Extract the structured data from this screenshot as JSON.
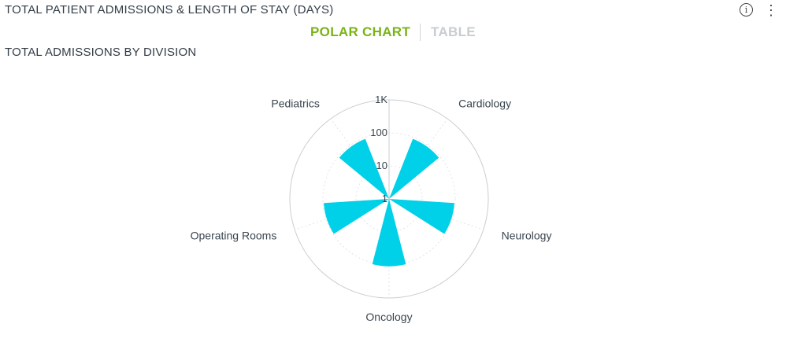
{
  "header": {
    "title": "TOTAL PATIENT ADMISSIONS & LENGTH OF STAY (DAYS)",
    "info_icon": "info-icon",
    "menu_icon": "kebab-menu-icon"
  },
  "view_toggle": {
    "active": "POLAR CHART",
    "inactive": "TABLE"
  },
  "colors": {
    "series": "#00d0e8",
    "active_tab": "#7ab317",
    "inactive_tab": "#c8cdd1"
  },
  "chart_data": {
    "type": "polar-bar",
    "title": "TOTAL ADMISSIONS BY DIVISION",
    "radial_scale": "log",
    "radial_ticks": [
      1,
      10,
      100,
      1000
    ],
    "radial_tick_labels": [
      "1",
      "10",
      "100",
      "1K"
    ],
    "categories": [
      "Cardiology",
      "Neurology",
      "Oncology",
      "Operating Rooms",
      "Pediatrics"
    ],
    "values": [
      90,
      95,
      110,
      95,
      90
    ],
    "grid": true,
    "legend": "none"
  }
}
